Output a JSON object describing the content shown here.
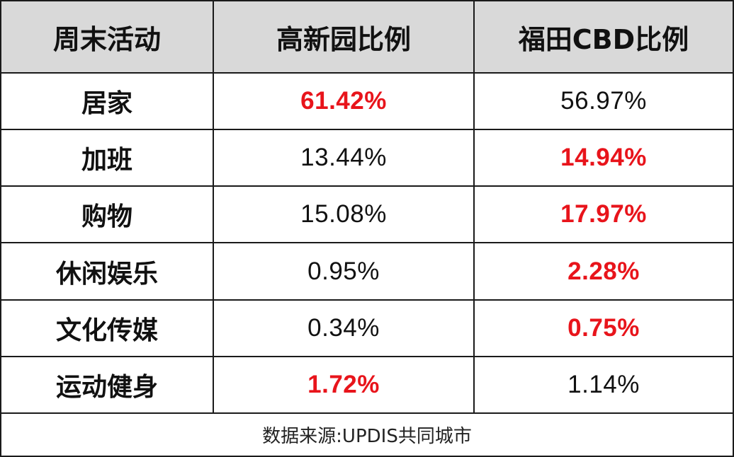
{
  "table": {
    "headers": [
      "周末活动",
      "高新园比例",
      "福田CBD比例"
    ],
    "rows": [
      {
        "activity": "居家",
        "gaoxinyuan": "61.42%",
        "futian_cbd": "56.97%",
        "highlight": "gaoxinyuan"
      },
      {
        "activity": "加班",
        "gaoxinyuan": "13.44%",
        "futian_cbd": "14.94%",
        "highlight": "futian_cbd"
      },
      {
        "activity": "购物",
        "gaoxinyuan": "15.08%",
        "futian_cbd": "17.97%",
        "highlight": "futian_cbd"
      },
      {
        "activity": "休闲娱乐",
        "gaoxinyuan": "0.95%",
        "futian_cbd": "2.28%",
        "highlight": "futian_cbd"
      },
      {
        "activity": "文化传媒",
        "gaoxinyuan": "0.34%",
        "futian_cbd": "0.75%",
        "highlight": "futian_cbd"
      },
      {
        "activity": "运动健身",
        "gaoxinyuan": "1.72%",
        "futian_cbd": "1.14%",
        "highlight": "gaoxinyuan"
      }
    ],
    "footer": "数据来源:UPDIS共同城市"
  },
  "colors": {
    "header_bg": "#d9d9d9",
    "highlight": "#e8141b",
    "text": "#111111",
    "border": "#1a1a1a"
  }
}
